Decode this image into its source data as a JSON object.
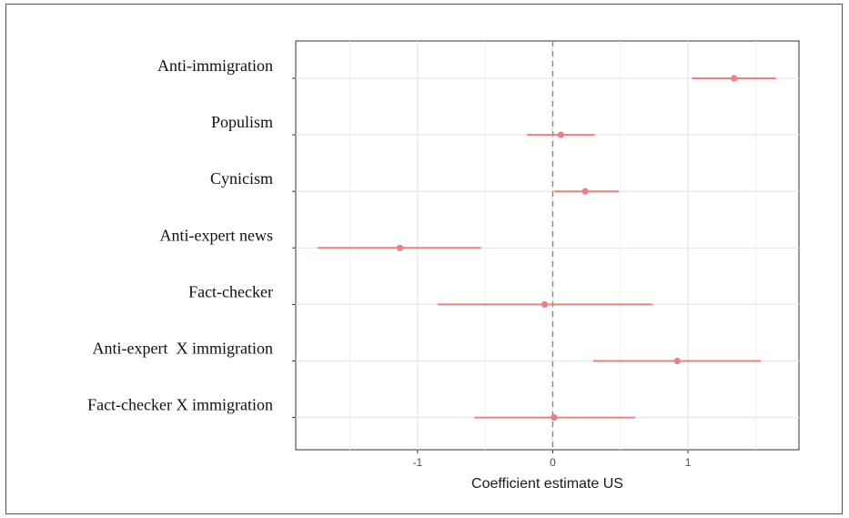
{
  "chart_data": {
    "type": "scatter",
    "style": "coefficient-plot-with-confidence-intervals",
    "xlabel": "Coefficient estimate US",
    "xlim": [
      -1.9,
      1.82
    ],
    "xticks": [
      -1,
      0,
      1
    ],
    "xtick_labels": [
      "-1",
      "0",
      "1"
    ],
    "reference_line": {
      "x": 0,
      "style": "dashed",
      "color": "#8c8c8c"
    },
    "grid": true,
    "series_color": "#f08080",
    "categories": [
      "Anti-immigration",
      "Populism",
      "Cynicism",
      "Anti-expert news",
      "Fact-checker",
      "Anti-expert  X immigration",
      "Fact-checker X immigration"
    ],
    "estimates": [
      1.34,
      0.06,
      0.24,
      -1.13,
      -0.06,
      0.92,
      0.01
    ],
    "ci_low": [
      1.03,
      -0.19,
      0.01,
      -1.74,
      -0.85,
      0.3,
      -0.58
    ],
    "ci_high": [
      1.65,
      0.31,
      0.49,
      -0.53,
      0.74,
      1.54,
      0.61
    ]
  }
}
